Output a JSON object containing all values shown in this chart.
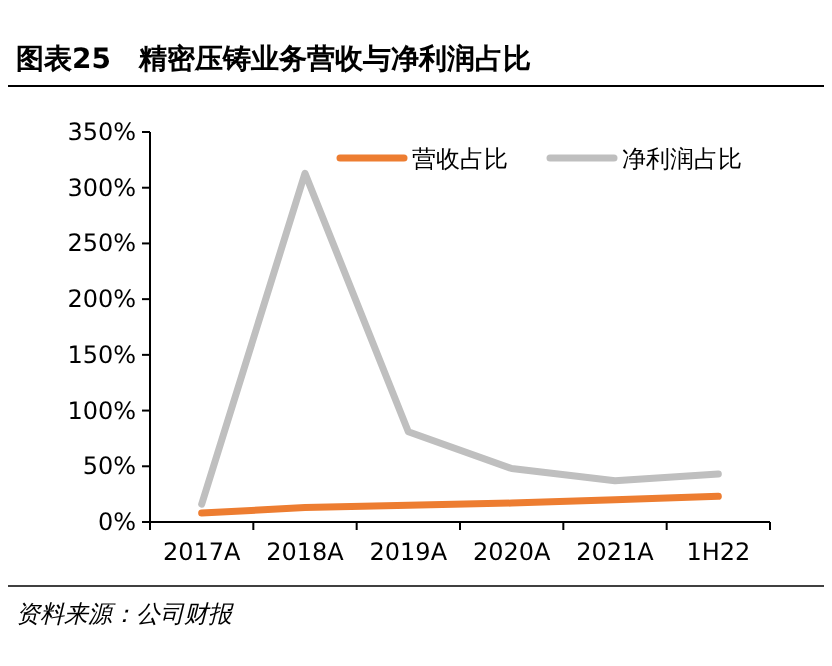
{
  "chart_data": {
    "type": "line",
    "title": "图表25　精密压铸业务营收与净利润占比",
    "categories": [
      "2017A",
      "2018A",
      "2019A",
      "2020A",
      "2021A",
      "1H22"
    ],
    "series": [
      {
        "name": "营收占比",
        "color": "#ed7d31",
        "values": [
          8,
          13,
          15,
          17,
          20,
          23
        ]
      },
      {
        "name": "净利润占比",
        "color": "#bfbfbf",
        "values": [
          16,
          313,
          81,
          48,
          37,
          43
        ]
      }
    ],
    "ylim": [
      0,
      350
    ],
    "yticks": [
      {
        "value": 0,
        "label": "0%"
      },
      {
        "value": 50,
        "label": "50%"
      },
      {
        "value": 100,
        "label": "100%"
      },
      {
        "value": 150,
        "label": "150%"
      },
      {
        "value": 200,
        "label": "200%"
      },
      {
        "value": 250,
        "label": "250%"
      },
      {
        "value": 300,
        "label": "300%"
      },
      {
        "value": 350,
        "label": "350%"
      }
    ],
    "legend": "top",
    "grid": false,
    "marker": "none",
    "line_style": "solid",
    "annotations": [
      "资料来源：公司财报"
    ]
  }
}
